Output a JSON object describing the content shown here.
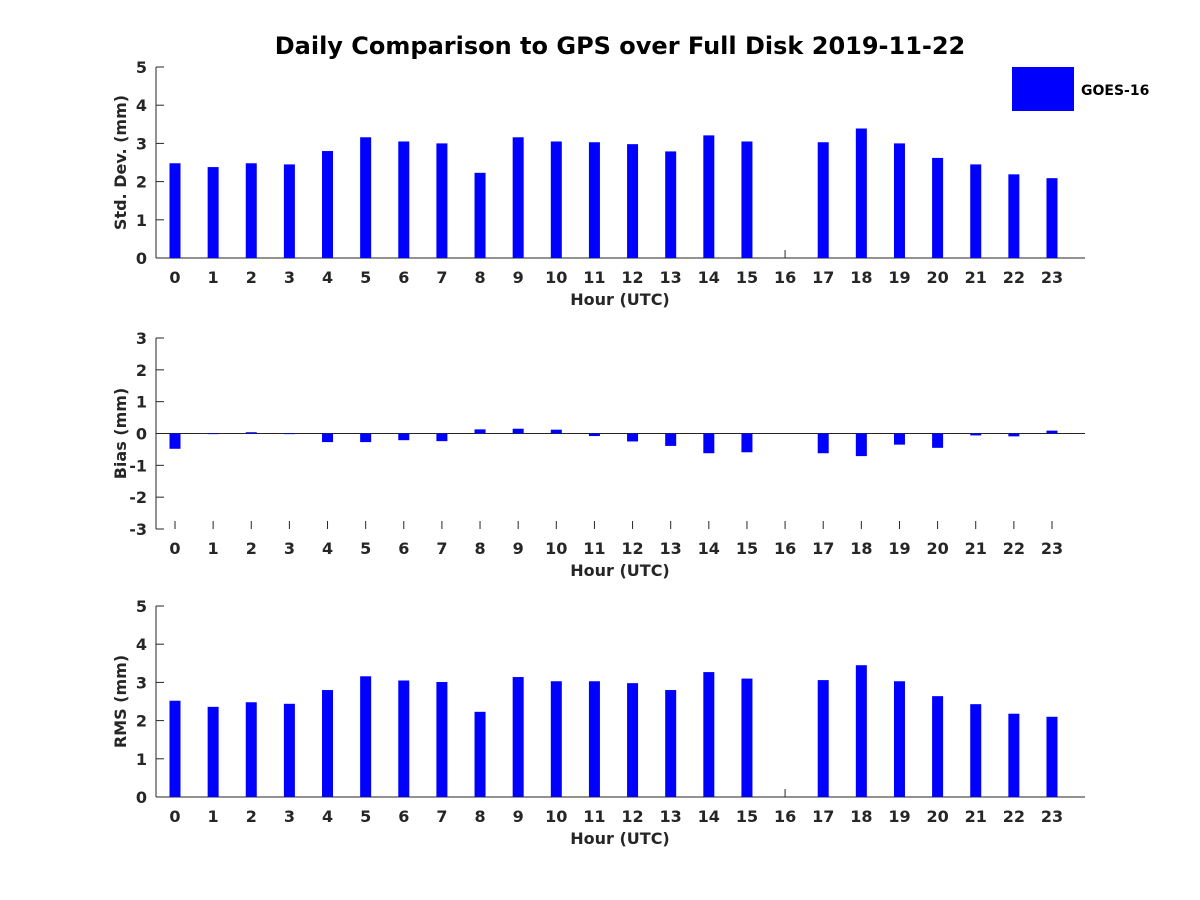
{
  "chart_data": {
    "title": "Daily Comparison to GPS over Full Disk 2019-11-22",
    "legend": {
      "label": "GOES-16",
      "color": "#0000ff",
      "placement": "top-right"
    },
    "bar_color": "#0000ff",
    "subplots": [
      {
        "id": "stddev",
        "type": "bar",
        "ylabel": "Std. Dev. (mm)",
        "xlabel": "Hour (UTC)",
        "ylim": [
          0,
          5
        ],
        "yticks": [
          0,
          1,
          2,
          3,
          4,
          5
        ],
        "categories": [
          0,
          1,
          2,
          3,
          4,
          5,
          6,
          7,
          8,
          9,
          10,
          11,
          12,
          13,
          14,
          15,
          16,
          17,
          18,
          19,
          20,
          21,
          22,
          23
        ],
        "values": [
          2.48,
          2.38,
          2.48,
          2.45,
          2.8,
          3.16,
          3.05,
          3.0,
          2.23,
          3.16,
          3.05,
          3.03,
          2.98,
          2.79,
          3.21,
          3.05,
          null,
          3.03,
          3.39,
          3.0,
          2.62,
          2.45,
          2.19,
          2.09
        ]
      },
      {
        "id": "bias",
        "type": "bar",
        "ylabel": "Bias (mm)",
        "xlabel": "Hour (UTC)",
        "ylim": [
          -3,
          3
        ],
        "yticks": [
          -3,
          -2,
          -1,
          0,
          1,
          2,
          3
        ],
        "categories": [
          0,
          1,
          2,
          3,
          4,
          5,
          6,
          7,
          8,
          9,
          10,
          11,
          12,
          13,
          14,
          15,
          16,
          17,
          18,
          19,
          20,
          21,
          22,
          23
        ],
        "values": [
          -0.48,
          -0.02,
          0.04,
          -0.02,
          -0.27,
          -0.27,
          -0.21,
          -0.24,
          0.13,
          0.15,
          0.12,
          -0.08,
          -0.25,
          -0.39,
          -0.62,
          -0.59,
          null,
          -0.62,
          -0.71,
          -0.35,
          -0.45,
          -0.06,
          -0.09,
          0.09
        ]
      },
      {
        "id": "rms",
        "type": "bar",
        "ylabel": "RMS (mm)",
        "xlabel": "Hour (UTC)",
        "ylim": [
          0,
          5
        ],
        "yticks": [
          0,
          1,
          2,
          3,
          4,
          5
        ],
        "categories": [
          0,
          1,
          2,
          3,
          4,
          5,
          6,
          7,
          8,
          9,
          10,
          11,
          12,
          13,
          14,
          15,
          16,
          17,
          18,
          19,
          20,
          21,
          22,
          23
        ],
        "values": [
          2.52,
          2.36,
          2.48,
          2.44,
          2.8,
          3.16,
          3.05,
          3.01,
          2.23,
          3.14,
          3.03,
          3.03,
          2.98,
          2.8,
          3.27,
          3.1,
          null,
          3.06,
          3.45,
          3.03,
          2.64,
          2.43,
          2.18,
          2.1
        ]
      }
    ]
  }
}
